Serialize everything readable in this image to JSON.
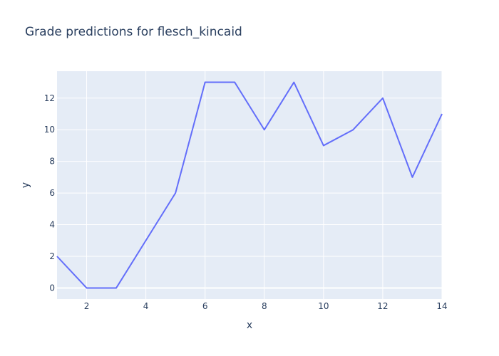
{
  "chart_data": {
    "type": "line",
    "title": "Grade predictions for flesch_kincaid",
    "xlabel": "x",
    "ylabel": "y",
    "x": [
      1,
      2,
      3,
      4,
      5,
      6,
      7,
      8,
      9,
      10,
      11,
      12,
      13,
      14
    ],
    "series": [
      {
        "values": [
          2,
          0,
          0,
          3,
          6,
          13,
          13,
          10,
          13,
          9,
          10,
          12,
          7,
          11
        ]
      }
    ],
    "xlim": [
      1,
      14
    ],
    "ylim": [
      -0.7,
      13.7
    ],
    "x_ticks": [
      "2",
      "4",
      "6",
      "8",
      "10",
      "12",
      "14"
    ],
    "y_ticks": [
      "0",
      "2",
      "4",
      "6",
      "8",
      "10",
      "12"
    ],
    "grid": true,
    "colors": {
      "plot_bg": "#E5ECF6",
      "grid": "#ffffff",
      "line": "#636EFA",
      "text": "#2a3f5f"
    }
  }
}
